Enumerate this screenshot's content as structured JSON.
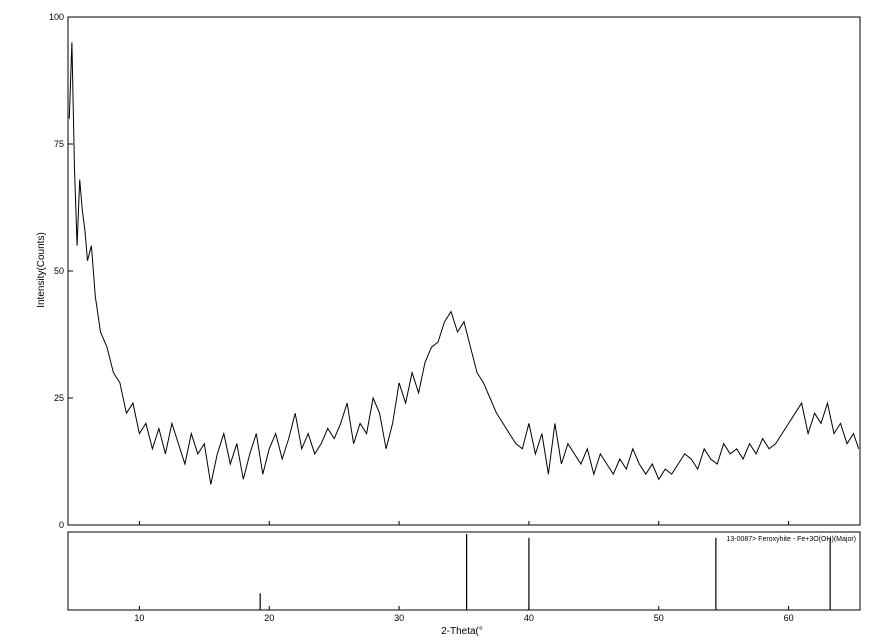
{
  "chart_data": {
    "type": "line",
    "title": "",
    "xlabel": "2-Theta(°",
    "ylabel": "Intensity(Counts)",
    "xlim": [
      4.5,
      65.5
    ],
    "ylim": [
      0,
      100
    ],
    "x_ticks": [
      10,
      20,
      30,
      40,
      50,
      60
    ],
    "y_ticks": [
      0,
      25,
      50,
      75,
      100
    ],
    "grid": false,
    "series": [
      {
        "x": [
          4.6,
          4.8,
          5.0,
          5.2,
          5.4,
          5.6,
          5.8,
          6.0,
          6.3,
          6.6,
          7.0,
          7.5,
          8.0,
          8.5,
          9.0,
          9.5,
          10.0,
          10.5,
          11.0,
          11.5,
          12.0,
          12.5,
          13.0,
          13.5,
          14.0,
          14.5,
          15.0,
          15.5,
          16.0,
          16.5,
          17.0,
          17.5,
          18.0,
          18.5,
          19.0,
          19.5,
          20.0,
          20.5,
          21.0,
          21.5,
          22.0,
          22.5,
          23.0,
          23.5,
          24.0,
          24.5,
          25.0,
          25.5,
          26.0,
          26.5,
          27.0,
          27.5,
          28.0,
          28.5,
          29.0,
          29.5,
          30.0,
          30.5,
          31.0,
          31.5,
          32.0,
          32.5,
          33.0,
          33.5,
          34.0,
          34.5,
          35.0,
          35.5,
          36.0,
          36.5,
          37.0,
          37.5,
          38.0,
          38.5,
          39.0,
          39.5,
          40.0,
          40.5,
          41.0,
          41.5,
          42.0,
          42.5,
          43.0,
          43.5,
          44.0,
          44.5,
          45.0,
          45.5,
          46.0,
          46.5,
          47.0,
          47.5,
          48.0,
          48.5,
          49.0,
          49.5,
          50.0,
          50.5,
          51.0,
          51.5,
          52.0,
          52.5,
          53.0,
          53.5,
          54.0,
          54.5,
          55.0,
          55.5,
          56.0,
          56.5,
          57.0,
          57.5,
          58.0,
          58.5,
          59.0,
          59.5,
          60.0,
          60.5,
          61.0,
          61.5,
          62.0,
          62.5,
          63.0,
          63.5,
          64.0,
          64.5,
          65.0,
          65.4
        ],
        "y": [
          80,
          95,
          70,
          55,
          68,
          62,
          58,
          52,
          55,
          45,
          38,
          35,
          30,
          28,
          22,
          24,
          18,
          20,
          15,
          19,
          14,
          20,
          16,
          12,
          18,
          14,
          16,
          8,
          14,
          18,
          12,
          16,
          9,
          14,
          18,
          10,
          15,
          18,
          13,
          17,
          22,
          15,
          18,
          14,
          16,
          19,
          17,
          20,
          24,
          16,
          20,
          18,
          25,
          22,
          15,
          20,
          28,
          24,
          30,
          26,
          32,
          35,
          36,
          40,
          42,
          38,
          40,
          35,
          30,
          28,
          25,
          22,
          20,
          18,
          16,
          15,
          20,
          14,
          18,
          10,
          20,
          12,
          16,
          14,
          12,
          15,
          10,
          14,
          12,
          10,
          13,
          11,
          15,
          12,
          10,
          12,
          9,
          11,
          10,
          12,
          14,
          13,
          11,
          15,
          13,
          12,
          16,
          14,
          15,
          13,
          16,
          14,
          17,
          15,
          16,
          18,
          20,
          22,
          24,
          18,
          22,
          20,
          24,
          18,
          20,
          16,
          18,
          15
        ],
        "color": "#000000"
      }
    ],
    "reference_pattern": {
      "label": "13-0087> Feroxyhite - Fe+3O(OH)(Major)",
      "peaks": [
        {
          "x": 19.3,
          "rel": 0.22
        },
        {
          "x": 35.2,
          "rel": 1.0
        },
        {
          "x": 40.0,
          "rel": 0.95
        },
        {
          "x": 54.4,
          "rel": 0.95
        },
        {
          "x": 63.2,
          "rel": 0.95
        }
      ]
    }
  }
}
